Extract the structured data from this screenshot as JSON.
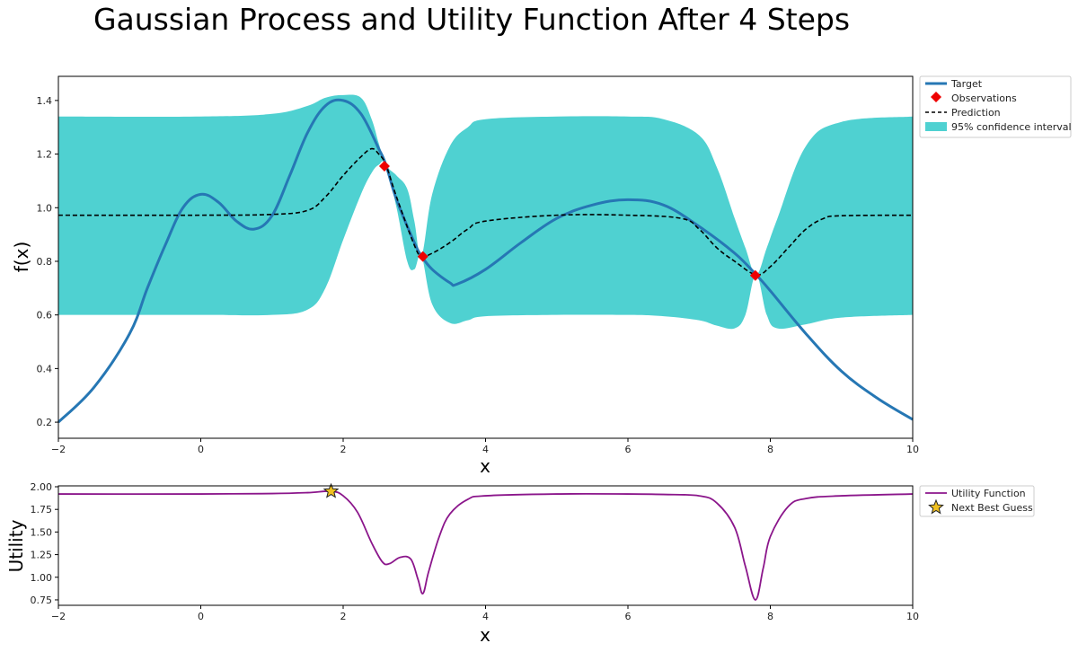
{
  "title": "Gaussian Process and Utility Function After 4 Steps",
  "chart_data": [
    {
      "type": "line",
      "name": "gp-panel",
      "xlabel": "x",
      "ylabel": "f(x)",
      "xlim": [
        -2,
        10
      ],
      "ylim": [
        0.14,
        1.49
      ],
      "xticks": [
        -2,
        0,
        2,
        4,
        6,
        8,
        10
      ],
      "yticks": [
        0.2,
        0.4,
        0.6,
        0.8,
        1.0,
        1.2,
        1.4
      ],
      "xtick_labels": [
        "−2",
        "0",
        "2",
        "4",
        "6",
        "8",
        "10"
      ],
      "ytick_labels": [
        "0.2",
        "0.4",
        "0.6",
        "0.8",
        "1.0",
        "1.2",
        "1.4"
      ],
      "grid": false,
      "legend_position": "outside-top-right",
      "legend": [
        "Target",
        "Observations",
        "Prediction",
        "95% confidence interval"
      ],
      "series": [
        {
          "name": "Target",
          "style": "solid",
          "color": "#2677b4",
          "x": [
            -2,
            -1.5,
            -1,
            -0.75,
            -0.5,
            -0.25,
            0,
            0.25,
            0.5,
            0.75,
            1,
            1.25,
            1.5,
            1.75,
            2,
            2.25,
            2.5,
            2.6,
            2.75,
            3,
            3.1,
            3.25,
            3.5,
            3.6,
            4,
            4.5,
            5,
            5.5,
            6,
            6.5,
            7,
            7.5,
            7.8,
            8,
            8.5,
            9,
            9.5,
            10
          ],
          "y": [
            0.2,
            0.33,
            0.53,
            0.7,
            0.86,
            1.0,
            1.05,
            1.02,
            0.95,
            0.92,
            0.97,
            1.12,
            1.28,
            1.38,
            1.4,
            1.35,
            1.22,
            1.16,
            1.03,
            0.87,
            0.82,
            0.77,
            0.72,
            0.715,
            0.77,
            0.87,
            0.96,
            1.01,
            1.03,
            1.01,
            0.93,
            0.83,
            0.75,
            0.69,
            0.53,
            0.39,
            0.29,
            0.21
          ]
        },
        {
          "name": "Prediction",
          "style": "dashed",
          "color": "#000000",
          "x": [
            -2,
            0,
            1,
            1.5,
            1.75,
            2,
            2.25,
            2.4,
            2.5,
            2.6,
            2.75,
            3,
            3.1,
            3.25,
            3.5,
            3.75,
            4,
            5,
            6,
            6.75,
            7,
            7.25,
            7.5,
            7.8,
            8.0,
            8.25,
            8.5,
            8.75,
            9,
            10
          ],
          "y": [
            0.972,
            0.972,
            0.975,
            0.99,
            1.04,
            1.12,
            1.19,
            1.22,
            1.2,
            1.16,
            1.04,
            0.86,
            0.82,
            0.83,
            0.87,
            0.92,
            0.95,
            0.972,
            0.972,
            0.96,
            0.92,
            0.85,
            0.8,
            0.75,
            0.78,
            0.85,
            0.92,
            0.96,
            0.97,
            0.972
          ]
        },
        {
          "name": "95% confidence interval",
          "style": "band",
          "color": "#4fd1d1",
          "x": [
            -2,
            0,
            1,
            1.5,
            1.75,
            2,
            2.25,
            2.4,
            2.5,
            2.6,
            2.75,
            2.9,
            3.0,
            3.1,
            3.25,
            3.5,
            3.75,
            4,
            5,
            6,
            6.5,
            7,
            7.25,
            7.5,
            7.65,
            7.8,
            7.95,
            8.1,
            8.5,
            9,
            10
          ],
          "upper": [
            1.34,
            1.34,
            1.35,
            1.38,
            1.41,
            1.42,
            1.41,
            1.33,
            1.24,
            1.16,
            1.12,
            1.07,
            0.95,
            0.82,
            1.05,
            1.23,
            1.3,
            1.33,
            1.34,
            1.34,
            1.33,
            1.27,
            1.15,
            0.96,
            0.85,
            0.75,
            0.85,
            0.96,
            1.23,
            1.32,
            1.34
          ],
          "lower": [
            0.6,
            0.6,
            0.6,
            0.62,
            0.7,
            0.88,
            1.05,
            1.13,
            1.16,
            1.16,
            1.0,
            0.8,
            0.77,
            0.82,
            0.64,
            0.57,
            0.58,
            0.595,
            0.6,
            0.6,
            0.595,
            0.58,
            0.56,
            0.55,
            0.6,
            0.75,
            0.6,
            0.55,
            0.565,
            0.59,
            0.6
          ]
        }
      ],
      "observations": {
        "name": "Observations",
        "color": "#ee0000",
        "x": [
          2.58,
          3.12,
          7.79
        ],
        "y": [
          1.155,
          0.818,
          0.747
        ]
      }
    },
    {
      "type": "line",
      "name": "utility-panel",
      "xlabel": "x",
      "ylabel": "Utility",
      "xlim": [
        -2,
        10
      ],
      "ylim": [
        0.69,
        2.01
      ],
      "xticks": [
        -2,
        0,
        2,
        4,
        6,
        8,
        10
      ],
      "yticks": [
        0.75,
        1.0,
        1.25,
        1.5,
        1.75,
        2.0
      ],
      "xtick_labels": [
        "−2",
        "0",
        "2",
        "4",
        "6",
        "8",
        "10"
      ],
      "ytick_labels": [
        "0.75",
        "1.00",
        "1.25",
        "1.50",
        "1.75",
        "2.00"
      ],
      "grid": false,
      "legend_position": "outside-top-right",
      "legend": [
        "Utility Function",
        "Next Best Guess"
      ],
      "series": [
        {
          "name": "Utility Function",
          "color": "#8b168b",
          "x": [
            -2,
            0,
            1,
            1.5,
            1.83,
            2.0,
            2.2,
            2.4,
            2.55,
            2.65,
            2.8,
            2.95,
            3.05,
            3.12,
            3.2,
            3.35,
            3.5,
            3.75,
            4,
            5,
            6,
            6.5,
            7.0,
            7.25,
            7.5,
            7.65,
            7.79,
            7.9,
            8.0,
            8.25,
            8.5,
            9,
            10
          ],
          "y": [
            1.92,
            1.92,
            1.925,
            1.935,
            1.95,
            1.9,
            1.72,
            1.38,
            1.17,
            1.15,
            1.22,
            1.2,
            0.98,
            0.82,
            1.06,
            1.45,
            1.7,
            1.86,
            1.9,
            1.92,
            1.92,
            1.915,
            1.9,
            1.82,
            1.55,
            1.12,
            0.75,
            1.1,
            1.45,
            1.78,
            1.87,
            1.9,
            1.92
          ]
        }
      ],
      "next_best_guess": {
        "name": "Next Best Guess",
        "color": "#f0c020",
        "x": 1.83,
        "y": 1.95
      }
    }
  ]
}
